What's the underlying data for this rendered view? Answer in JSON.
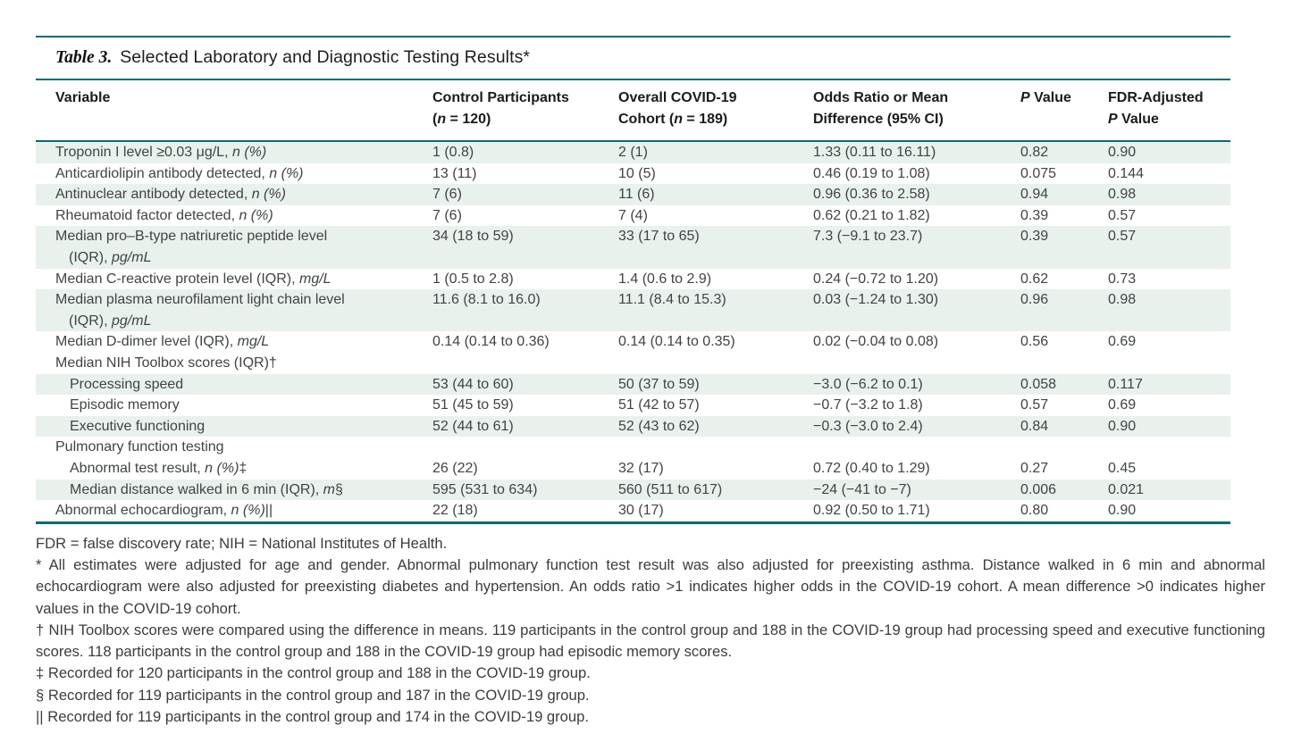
{
  "title": {
    "prefix": "Table 3.",
    "text": "Selected Laboratory and Diagnostic Testing Results*"
  },
  "colors": {
    "accent_teal": "#0b6b70",
    "row_shade": "#e9f1ed",
    "body_text": "#3f4444"
  },
  "table": {
    "headers": [
      {
        "lines": [
          [
            {
              "t": "Variable"
            }
          ]
        ]
      },
      {
        "lines": [
          [
            {
              "t": "Control Participants"
            }
          ],
          [
            {
              "t": "("
            },
            {
              "t": "n",
              "i": true
            },
            {
              "t": " = 120)"
            }
          ]
        ]
      },
      {
        "lines": [
          [
            {
              "t": "Overall COVID-19"
            }
          ],
          [
            {
              "t": "Cohort ("
            },
            {
              "t": "n",
              "i": true
            },
            {
              "t": " = 189)"
            }
          ]
        ]
      },
      {
        "lines": [
          [
            {
              "t": "Odds Ratio or Mean"
            }
          ],
          [
            {
              "t": "Difference (95% CI)"
            }
          ]
        ]
      },
      {
        "lines": [
          [
            {
              "t": "P",
              "i": true
            },
            {
              "t": " Value"
            }
          ]
        ]
      },
      {
        "lines": [
          [
            {
              "t": "FDR-Adjusted"
            }
          ],
          [
            {
              "t": "P",
              "i": true
            },
            {
              "t": " Value"
            }
          ]
        ]
      }
    ],
    "rows": [
      {
        "indent": 0,
        "shaded": true,
        "label": [
          [
            {
              "t": "Troponin I level ≥0.03 μg/L, "
            },
            {
              "t": "n (%)",
              "i": true
            }
          ]
        ],
        "values": [
          "1 (0.8)",
          "2 (1)",
          "1.33 (0.11 to 16.11)",
          "0.82",
          "0.90"
        ]
      },
      {
        "indent": 0,
        "shaded": false,
        "label": [
          [
            {
              "t": "Anticardiolipin antibody detected, "
            },
            {
              "t": "n (%)",
              "i": true
            }
          ]
        ],
        "values": [
          "13 (11)",
          "10 (5)",
          "0.46 (0.19 to 1.08)",
          "0.075",
          "0.144"
        ]
      },
      {
        "indent": 0,
        "shaded": true,
        "label": [
          [
            {
              "t": "Antinuclear antibody detected, "
            },
            {
              "t": "n (%)",
              "i": true
            }
          ]
        ],
        "values": [
          "7 (6)",
          "11 (6)",
          "0.96 (0.36 to 2.58)",
          "0.94",
          "0.98"
        ]
      },
      {
        "indent": 0,
        "shaded": false,
        "label": [
          [
            {
              "t": "Rheumatoid factor detected, "
            },
            {
              "t": "n (%)",
              "i": true
            }
          ]
        ],
        "values": [
          "7 (6)",
          "7 (4)",
          "0.62 (0.21 to 1.82)",
          "0.39",
          "0.57"
        ]
      },
      {
        "indent": 0,
        "shaded": true,
        "label": [
          [
            {
              "t": "Median pro–B-type natriuretic peptide level"
            }
          ],
          [
            {
              "t": "(IQR), "
            },
            {
              "t": "pg/mL",
              "i": true
            }
          ]
        ],
        "values": [
          "34 (18 to 59)",
          "33 (17 to 65)",
          "7.3 (−9.1 to 23.7)",
          "0.39",
          "0.57"
        ]
      },
      {
        "indent": 0,
        "shaded": false,
        "label": [
          [
            {
              "t": "Median C-reactive protein level (IQR), "
            },
            {
              "t": "mg/L",
              "i": true
            }
          ]
        ],
        "values": [
          "1 (0.5 to 2.8)",
          "1.4 (0.6 to 2.9)",
          "0.24 (−0.72 to 1.20)",
          "0.62",
          "0.73"
        ]
      },
      {
        "indent": 0,
        "shaded": true,
        "label": [
          [
            {
              "t": "Median plasma neurofilament light chain level"
            }
          ],
          [
            {
              "t": "(IQR), "
            },
            {
              "t": "pg/mL",
              "i": true
            }
          ]
        ],
        "values": [
          "11.6 (8.1 to 16.0)",
          "11.1 (8.4 to 15.3)",
          "0.03 (−1.24 to 1.30)",
          "0.96",
          "0.98"
        ]
      },
      {
        "indent": 0,
        "shaded": false,
        "label": [
          [
            {
              "t": "Median D-dimer level (IQR), "
            },
            {
              "t": "mg/L",
              "i": true
            }
          ]
        ],
        "values": [
          "0.14 (0.14 to 0.36)",
          "0.14 (0.14 to 0.35)",
          "0.02 (−0.04 to 0.08)",
          "0.56",
          "0.69"
        ]
      },
      {
        "indent": 0,
        "shaded": false,
        "label": [
          [
            {
              "t": "Median NIH Toolbox scores (IQR)†"
            }
          ]
        ],
        "values": [
          "",
          "",
          "",
          "",
          ""
        ]
      },
      {
        "indent": 1,
        "shaded": true,
        "label": [
          [
            {
              "t": "Processing speed"
            }
          ]
        ],
        "values": [
          "53 (44 to 60)",
          "50 (37 to 59)",
          "−3.0 (−6.2 to 0.1)",
          "0.058",
          "0.117"
        ]
      },
      {
        "indent": 1,
        "shaded": false,
        "label": [
          [
            {
              "t": "Episodic memory"
            }
          ]
        ],
        "values": [
          "51 (45 to 59)",
          "51 (42 to 57)",
          "−0.7 (−3.2 to 1.8)",
          "0.57",
          "0.69"
        ]
      },
      {
        "indent": 1,
        "shaded": true,
        "label": [
          [
            {
              "t": "Executive functioning"
            }
          ]
        ],
        "values": [
          "52 (44 to 61)",
          "52 (43 to 62)",
          "−0.3 (−3.0 to 2.4)",
          "0.84",
          "0.90"
        ]
      },
      {
        "indent": 0,
        "shaded": false,
        "label": [
          [
            {
              "t": "Pulmonary function testing"
            }
          ]
        ],
        "values": [
          "",
          "",
          "",
          "",
          ""
        ]
      },
      {
        "indent": 1,
        "shaded": false,
        "label": [
          [
            {
              "t": "Abnormal test result, "
            },
            {
              "t": "n (%)",
              "i": true
            },
            {
              "t": "‡"
            }
          ]
        ],
        "values": [
          "26 (22)",
          "32 (17)",
          "0.72 (0.40 to 1.29)",
          "0.27",
          "0.45"
        ]
      },
      {
        "indent": 1,
        "shaded": true,
        "label": [
          [
            {
              "t": "Median distance walked in 6 min (IQR), "
            },
            {
              "t": "m",
              "i": true
            },
            {
              "t": "§"
            }
          ]
        ],
        "values": [
          "595 (531 to 634)",
          "560 (511 to 617)",
          "−24 (−41 to −7)",
          "0.006",
          "0.021"
        ]
      },
      {
        "indent": 0,
        "shaded": false,
        "label": [
          [
            {
              "t": "Abnormal echocardiogram, "
            },
            {
              "t": "n (%)",
              "i": true
            },
            {
              "t": "||"
            }
          ]
        ],
        "values": [
          "22 (18)",
          "30 (17)",
          "0.92 (0.50 to 1.71)",
          "0.80",
          "0.90"
        ]
      }
    ]
  },
  "footnotes": [
    "FDR = false discovery rate; NIH = National Institutes of Health.",
    "* All estimates were adjusted for age and gender. Abnormal pulmonary function test result was also adjusted for preexisting asthma. Distance walked in 6 min and abnormal echocardiogram were also adjusted for preexisting diabetes and hypertension. An odds ratio >1 indicates higher odds in the COVID-19 cohort. A mean difference >0 indicates higher values in the COVID-19 cohort.",
    "† NIH Toolbox scores were compared using the difference in means. 119 participants in the control group and 188 in the COVID-19 group had processing speed and executive functioning scores. 118 participants in the control group and 188 in the COVID-19 group had episodic memory scores.",
    "‡ Recorded for 120 participants in the control group and 188 in the COVID-19 group.",
    "§ Recorded for 119 participants in the control group and 187 in the COVID-19 group.",
    "|| Recorded for 119 participants in the control group and 174 in the COVID-19 group."
  ]
}
